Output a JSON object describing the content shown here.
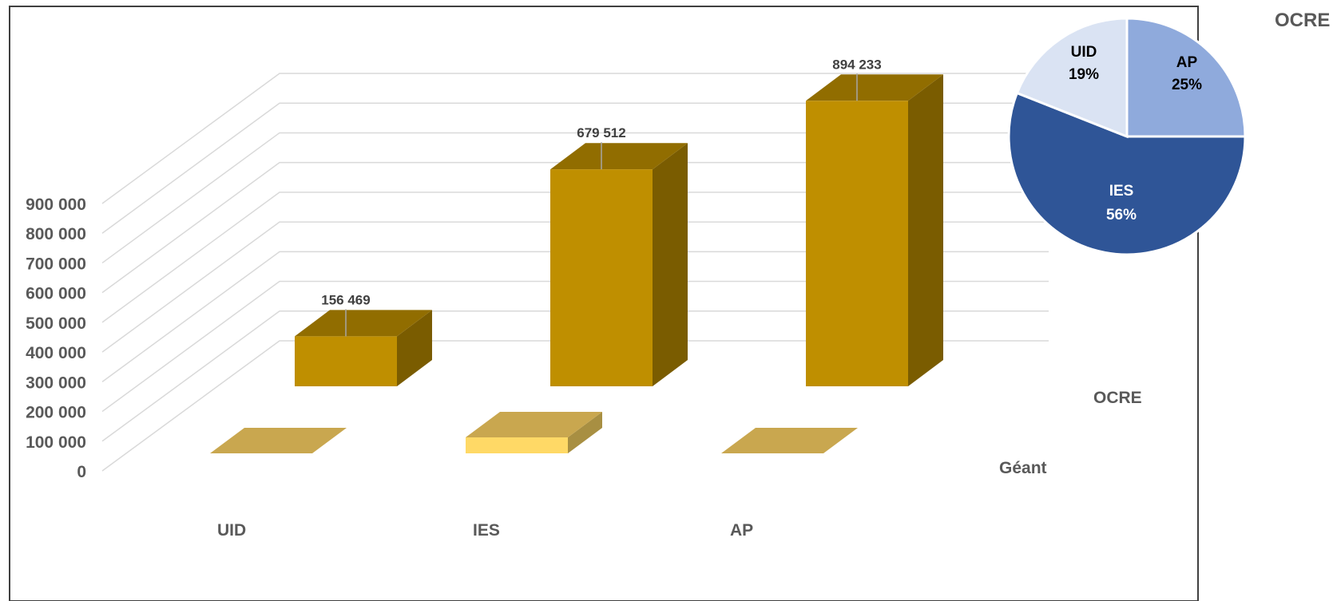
{
  "chart_data": [
    {
      "type": "bar",
      "title": "",
      "categories": [
        "UID",
        "IES",
        "AP"
      ],
      "series": [
        {
          "name": "OCRE",
          "values": [
            156469,
            679512,
            894233
          ],
          "labels": [
            "156 469",
            "679 512",
            "894 233"
          ],
          "color": "#BF8F00"
        },
        {
          "name": "Géant",
          "values": [
            0,
            50000,
            0
          ],
          "color": "#C9A74F"
        }
      ],
      "ylim": [
        0,
        900000
      ],
      "yticks": [
        0,
        100000,
        200000,
        300000,
        400000,
        500000,
        600000,
        700000,
        800000,
        900000
      ],
      "ytick_labels": [
        "0",
        "100 000",
        "200 000",
        "300 000",
        "400 000",
        "500 000",
        "600 000",
        "700 000",
        "800 000",
        "900 000"
      ],
      "grid": true,
      "style": "3d"
    },
    {
      "type": "pie",
      "title": "OCRE",
      "slices": [
        {
          "label": "AP",
          "value": 25,
          "pct_label": "25%",
          "color": "#8FAADC"
        },
        {
          "label": "IES",
          "value": 56,
          "pct_label": "56%",
          "color": "#2F5597"
        },
        {
          "label": "UID",
          "value": 19,
          "pct_label": "19%",
          "color": "#DAE3F3"
        }
      ]
    }
  ]
}
